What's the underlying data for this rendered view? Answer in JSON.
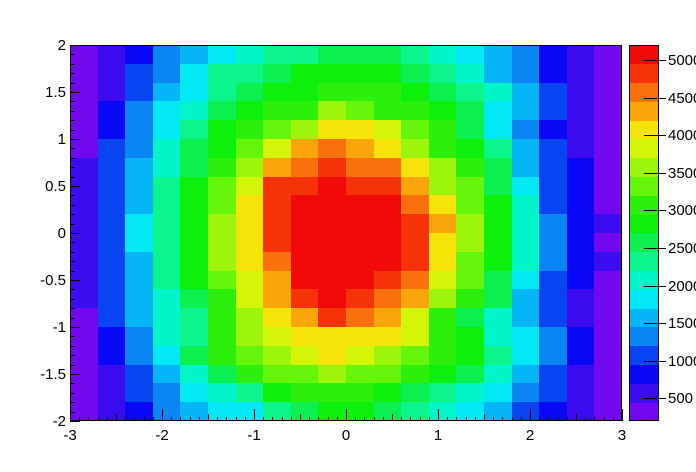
{
  "chart_data": {
    "type": "heatmap",
    "title": "",
    "xlabel": "",
    "ylabel": "",
    "x_range": [
      -3,
      3
    ],
    "y_range": [
      -2,
      2
    ],
    "nx": 20,
    "ny": 20,
    "z_min": 200,
    "z_max": 5200,
    "n_levels": 20,
    "grid": false,
    "legend_position": "right-colorbar",
    "x_ticks": [
      -3,
      -2,
      -1,
      0,
      1,
      2,
      3
    ],
    "x_tick_labels": [
      "-3",
      "-2",
      "-1",
      "0",
      "1",
      "2",
      "3"
    ],
    "x_minor_tick_step": 0.1,
    "y_ticks": [
      2,
      1.5,
      1,
      0.5,
      0,
      -0.5,
      -1,
      -1.5,
      -2
    ],
    "y_tick_labels": [
      "2",
      "1.5",
      "1",
      "0.5",
      "0",
      "-0.5",
      "-1",
      "-1.5",
      "-2"
    ],
    "y_minor_tick_step": 0.1,
    "colorbar_ticks": [
      500,
      1000,
      1500,
      2000,
      2500,
      3000,
      3500,
      4000,
      4500,
      5000
    ],
    "colorbar_tick_labels": [
      "500",
      "1000",
      "1500",
      "2000",
      "2500",
      "3000",
      "3500",
      "4000",
      "4500",
      "5000"
    ],
    "palette": [
      "#7208f0",
      "#3c0cf0",
      "#0808f5",
      "#0845f0",
      "#0a85f2",
      "#05b5f5",
      "#02e8f4",
      "#00f5c8",
      "#0cf58c",
      "#0cf04f",
      "#0cf00c",
      "#2cf00c",
      "#64f50a",
      "#9cf50a",
      "#d2f508",
      "#f5e30a",
      "#faa50a",
      "#fa700a",
      "#f53208",
      "#f20a0a"
    ],
    "row_order": "y-descending",
    "values": [
      [
        217,
        507,
        796,
        1340,
        1630,
        1744,
        2034,
        2323,
        2358,
        2648,
        2508,
        2543,
        2323,
        2104,
        1884,
        1490,
        1270,
        796,
        577,
        357
      ],
      [
        252,
        542,
        1086,
        1375,
        1744,
        2288,
        2323,
        2613,
        2902,
        2762,
        2797,
        2832,
        2613,
        2393,
        1999,
        1525,
        1305,
        831,
        612,
        217
      ],
      [
        287,
        577,
        1121,
        1490,
        1779,
        2323,
        2613,
        2902,
        2762,
        3052,
        3087,
        3122,
        2902,
        2508,
        2288,
        2069,
        1595,
        1121,
        472,
        252
      ],
      [
        322,
        866,
        1235,
        1779,
        2069,
        2613,
        2902,
        3017,
        3052,
        3596,
        3376,
        3157,
        3017,
        2797,
        2578,
        1849,
        1630,
        981,
        507,
        287
      ],
      [
        357,
        726,
        1270,
        1814,
        2358,
        2902,
        3017,
        3306,
        3596,
        4140,
        4175,
        3780,
        3306,
        3087,
        2613,
        1884,
        1235,
        761,
        542,
        322
      ],
      [
        217,
        1016,
        1305,
        2104,
        2648,
        2762,
        3306,
        3850,
        4394,
        4684,
        4289,
        4070,
        3596,
        3122,
        2902,
        2253,
        1525,
        1051,
        577,
        357
      ],
      [
        507,
        1051,
        1595,
        2139,
        2508,
        3052,
        3596,
        4394,
        4684,
        4798,
        4579,
        4614,
        4140,
        3666,
        3017,
        2543,
        1560,
        1086,
        866,
        217
      ],
      [
        542,
        1086,
        1630,
        2253,
        2797,
        3341,
        3885,
        4938,
        4798,
        5088,
        4868,
        4903,
        4429,
        3526,
        3306,
        2578,
        1849,
        1121,
        726,
        252
      ],
      [
        577,
        1121,
        1490,
        2288,
        2832,
        3376,
        4175,
        4798,
        5088,
        5123,
        5158,
        5193,
        4544,
        4070,
        3341,
        2867,
        2139,
        981,
        761,
        287
      ],
      [
        612,
        981,
        1779,
        2323,
        2867,
        3666,
        4035,
        4833,
        5123,
        5158,
        5193,
        5053,
        4833,
        4359,
        3631,
        2902,
        2069,
        1270,
        796,
        577
      ],
      [
        472,
        1016,
        1814,
        2358,
        2902,
        3526,
        4070,
        4868,
        5158,
        5193,
        5053,
        5088,
        4868,
        4140,
        3666,
        2762,
        2034,
        1305,
        831,
        357
      ],
      [
        507,
        1051,
        1595,
        2393,
        2762,
        3561,
        4105,
        4649,
        5193,
        5053,
        5088,
        5123,
        4903,
        4175,
        3271,
        2797,
        2069,
        1340,
        866,
        472
      ],
      [
        542,
        1086,
        1630,
        2253,
        2797,
        3341,
        3885,
        4429,
        5053,
        5088,
        5123,
        4903,
        4684,
        3780,
        3306,
        2578,
        1849,
        1121,
        726,
        252
      ],
      [
        577,
        1121,
        1490,
        2034,
        2578,
        3122,
        3920,
        4324,
        4833,
        5123,
        4903,
        4684,
        4254,
        3561,
        3087,
        2613,
        1630,
        981,
        507,
        287
      ],
      [
        357,
        981,
        1525,
        2069,
        2358,
        3157,
        3526,
        4070,
        4394,
        4903,
        4684,
        4289,
        3815,
        3087,
        2648,
        2139,
        1490,
        1016,
        542,
        322
      ],
      [
        217,
        761,
        1305,
        2104,
        2393,
        3017,
        3561,
        3850,
        4140,
        4175,
        4035,
        4070,
        3850,
        3122,
        2902,
        1999,
        1779,
        1305,
        831,
        357
      ],
      [
        252,
        796,
        1340,
        1884,
        2508,
        3052,
        3341,
        3631,
        3920,
        4035,
        3815,
        3596,
        3376,
        3157,
        2762,
        2288,
        1814,
        1340,
        866,
        217
      ],
      [
        287,
        577,
        1121,
        1490,
        2034,
        2578,
        3122,
        3411,
        3271,
        3561,
        3341,
        3376,
        3157,
        2762,
        2543,
        2069,
        1595,
        1121,
        472,
        252
      ],
      [
        322,
        612,
        981,
        1270,
        1814,
        2104,
        2393,
        2762,
        3052,
        3087,
        3122,
        2902,
        2508,
        2288,
        2069,
        1884,
        1235,
        1016,
        507,
        287
      ],
      [
        357,
        472,
        761,
        1305,
        1595,
        1884,
        1744,
        2288,
        2578,
        2867,
        2902,
        2508,
        2288,
        2104,
        1814,
        1595,
        981,
        761,
        577,
        322
      ]
    ]
  }
}
